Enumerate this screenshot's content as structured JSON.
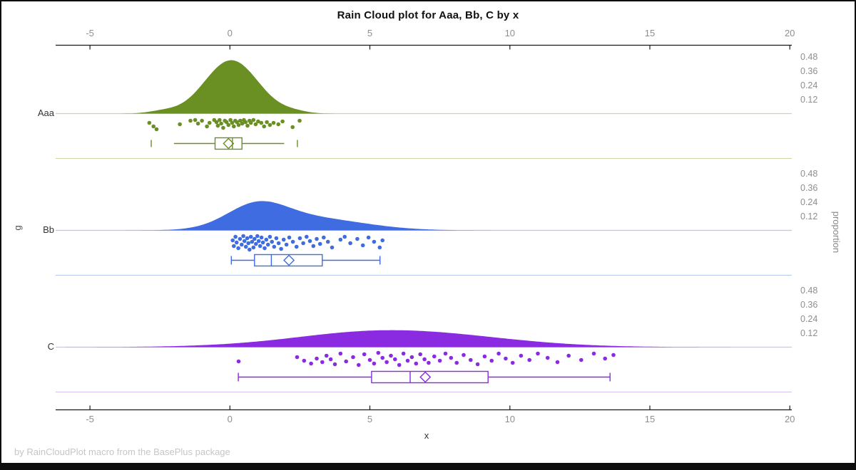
{
  "chart_data": {
    "type": "raincloud",
    "title": "Rain Cloud plot for Aaa, Bb, C by x",
    "xlabel": "x",
    "ylabel_left": "g",
    "ylabel_right": "proportion",
    "footnote": "by RainCloudPlot macro from the BasePlus package",
    "x_ticks": [
      -5,
      0,
      5,
      10,
      15,
      20
    ],
    "xlim": [
      -6.2,
      20.6
    ],
    "proportion_ticks": [
      "0.48",
      "0.36",
      "0.24",
      "0.12"
    ],
    "grid": "off",
    "legend": "none",
    "groups": [
      {
        "label": "Aaa",
        "color": "#6a8f23",
        "light_color": "#ccd8a4",
        "cloud_components": [
          {
            "mu": 0.05,
            "sigma": 0.95,
            "amp": 0.45
          },
          {
            "mu": -2.4,
            "sigma": 0.5,
            "amp": 0.02
          },
          {
            "mu": 2.3,
            "sigma": 0.45,
            "amp": 0.015
          }
        ],
        "box": {
          "whisker_low": -2.0,
          "q1": -0.53,
          "median": 0.09,
          "q3": 0.43,
          "whisker_high": 1.94,
          "mean": -0.05,
          "outliers": [
            -2.81,
            2.41
          ],
          "caps": false
        },
        "points": [
          [
            -2.88,
            13
          ],
          [
            -2.73,
            18
          ],
          [
            -2.62,
            22
          ],
          [
            -1.79,
            15
          ],
          [
            -1.41,
            10
          ],
          [
            -1.24,
            9
          ],
          [
            -1.14,
            14
          ],
          [
            -1.0,
            10
          ],
          [
            -0.82,
            18
          ],
          [
            -0.73,
            13
          ],
          [
            -0.56,
            9
          ],
          [
            -0.48,
            12
          ],
          [
            -0.43,
            17
          ],
          [
            -0.37,
            9
          ],
          [
            -0.31,
            14
          ],
          [
            -0.24,
            20
          ],
          [
            -0.18,
            10
          ],
          [
            -0.12,
            12
          ],
          [
            -0.05,
            16
          ],
          [
            0.02,
            9
          ],
          [
            0.08,
            13
          ],
          [
            0.14,
            18
          ],
          [
            0.19,
            10
          ],
          [
            0.25,
            12
          ],
          [
            0.31,
            16
          ],
          [
            0.37,
            10
          ],
          [
            0.44,
            14
          ],
          [
            0.5,
            9
          ],
          [
            0.56,
            12
          ],
          [
            0.63,
            17
          ],
          [
            0.7,
            10
          ],
          [
            0.75,
            13
          ],
          [
            0.84,
            9
          ],
          [
            0.92,
            15
          ],
          [
            1.01,
            11
          ],
          [
            1.12,
            13
          ],
          [
            1.22,
            18
          ],
          [
            1.32,
            12
          ],
          [
            1.43,
            16
          ],
          [
            1.56,
            13
          ],
          [
            1.73,
            15
          ],
          [
            1.88,
            11
          ],
          [
            2.24,
            19
          ],
          [
            2.49,
            10
          ]
        ]
      },
      {
        "label": "Bb",
        "color": "#3f6ce1",
        "light_color": "#b9c8f0",
        "cloud_components": [
          {
            "mu": 0.95,
            "sigma": 1.05,
            "amp": 0.178
          },
          {
            "mu": 2.8,
            "sigma": 1.9,
            "amp": 0.105
          }
        ],
        "box": {
          "whisker_low": 0.05,
          "q1": 0.88,
          "median": 1.48,
          "q3": 3.3,
          "whisker_high": 5.36,
          "mean": 2.11,
          "outliers": [],
          "caps": true
        },
        "points": [
          [
            0.1,
            14
          ],
          [
            0.14,
            22
          ],
          [
            0.2,
            9
          ],
          [
            0.24,
            17
          ],
          [
            0.3,
            25
          ],
          [
            0.36,
            12
          ],
          [
            0.42,
            20
          ],
          [
            0.48,
            8
          ],
          [
            0.52,
            15
          ],
          [
            0.57,
            23
          ],
          [
            0.62,
            11
          ],
          [
            0.66,
            18
          ],
          [
            0.7,
            27
          ],
          [
            0.75,
            9
          ],
          [
            0.79,
            16
          ],
          [
            0.84,
            24
          ],
          [
            0.88,
            12
          ],
          [
            0.93,
            19
          ],
          [
            0.98,
            8
          ],
          [
            1.03,
            15
          ],
          [
            1.08,
            22
          ],
          [
            1.13,
            10
          ],
          [
            1.18,
            17
          ],
          [
            1.24,
            25
          ],
          [
            1.3,
            13
          ],
          [
            1.36,
            20
          ],
          [
            1.43,
            9
          ],
          [
            1.5,
            16
          ],
          [
            1.58,
            23
          ],
          [
            1.66,
            11
          ],
          [
            1.74,
            18
          ],
          [
            1.83,
            26
          ],
          [
            1.92,
            13
          ],
          [
            2.02,
            20
          ],
          [
            2.12,
            10
          ],
          [
            2.25,
            16
          ],
          [
            2.38,
            23
          ],
          [
            2.5,
            11
          ],
          [
            2.62,
            18
          ],
          [
            2.74,
            9
          ],
          [
            2.86,
            15
          ],
          [
            2.98,
            22
          ],
          [
            3.1,
            12
          ],
          [
            3.22,
            19
          ],
          [
            3.35,
            10
          ],
          [
            3.5,
            16
          ],
          [
            3.65,
            24
          ],
          [
            3.95,
            13
          ],
          [
            4.1,
            9
          ],
          [
            4.3,
            18
          ],
          [
            4.55,
            12
          ],
          [
            4.75,
            21
          ],
          [
            4.95,
            10
          ],
          [
            5.15,
            16
          ],
          [
            5.35,
            24
          ],
          [
            5.45,
            14
          ]
        ]
      },
      {
        "label": "C",
        "color": "#8a2be2",
        "light_color": "#d8bff2",
        "cloud_components": [
          {
            "mu": 6.0,
            "sigma": 3.4,
            "amp": 0.138
          },
          {
            "mu": 4.2,
            "sigma": 1.8,
            "amp": 0.008
          }
        ],
        "box": {
          "whisker_low": 0.3,
          "q1": 5.06,
          "median": 6.44,
          "q3": 9.22,
          "whisker_high": 13.58,
          "mean": 6.98,
          "outliers": [],
          "caps": true
        },
        "points": [
          [
            0.31,
            20
          ],
          [
            2.4,
            14
          ],
          [
            2.65,
            19
          ],
          [
            2.9,
            23
          ],
          [
            3.1,
            16
          ],
          [
            3.3,
            21
          ],
          [
            3.45,
            12
          ],
          [
            3.6,
            17
          ],
          [
            3.75,
            24
          ],
          [
            3.95,
            9
          ],
          [
            4.15,
            20
          ],
          [
            4.4,
            14
          ],
          [
            4.6,
            25
          ],
          [
            4.8,
            10
          ],
          [
            5.0,
            18
          ],
          [
            5.15,
            23
          ],
          [
            5.3,
            8
          ],
          [
            5.45,
            15
          ],
          [
            5.6,
            21
          ],
          [
            5.75,
            12
          ],
          [
            5.9,
            17
          ],
          [
            6.05,
            25
          ],
          [
            6.2,
            9
          ],
          [
            6.35,
            19
          ],
          [
            6.5,
            14
          ],
          [
            6.65,
            23
          ],
          [
            6.8,
            10
          ],
          [
            6.95,
            17
          ],
          [
            7.1,
            22
          ],
          [
            7.3,
            13
          ],
          [
            7.5,
            19
          ],
          [
            7.7,
            9
          ],
          [
            7.9,
            15
          ],
          [
            8.1,
            22
          ],
          [
            8.35,
            11
          ],
          [
            8.6,
            18
          ],
          [
            8.85,
            24
          ],
          [
            9.1,
            13
          ],
          [
            9.35,
            19
          ],
          [
            9.6,
            9
          ],
          [
            9.85,
            16
          ],
          [
            10.1,
            22
          ],
          [
            10.4,
            12
          ],
          [
            10.7,
            18
          ],
          [
            11.0,
            9
          ],
          [
            11.35,
            15
          ],
          [
            11.7,
            21
          ],
          [
            12.1,
            12
          ],
          [
            12.55,
            18
          ],
          [
            13.0,
            9
          ],
          [
            13.4,
            16
          ],
          [
            13.7,
            11
          ]
        ]
      }
    ]
  }
}
